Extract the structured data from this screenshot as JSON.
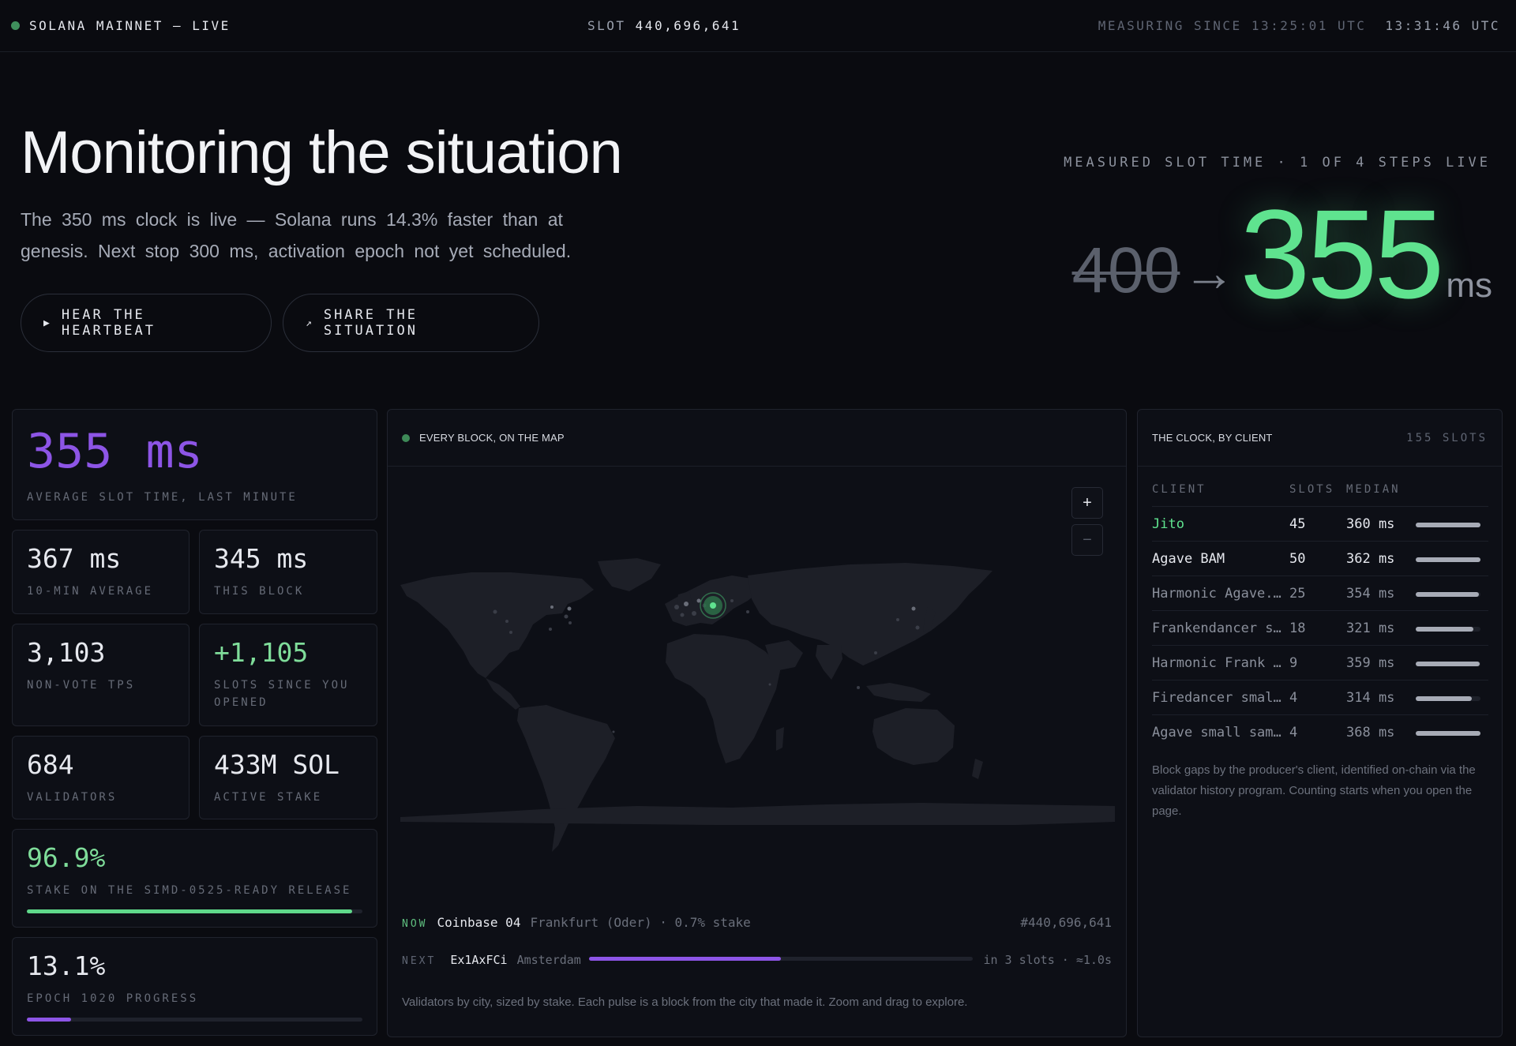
{
  "topbar": {
    "network": "SOLANA MAINNET — LIVE",
    "slot_label": "SLOT",
    "slot_value": "440,696,641",
    "measuring_since": "MEASURING SINCE 13:25:01 UTC",
    "clock": "13:31:46 UTC"
  },
  "hero": {
    "title": "Monitoring the situation",
    "subtitle": "The 350 ms clock is live — Solana runs 14.3% faster than at genesis. Next stop 300 ms, activation epoch not yet scheduled.",
    "btn_heartbeat": "HEAR THE HEARTBEAT",
    "btn_share": "SHARE THE SITUATION",
    "measured_label": "MEASURED SLOT TIME · 1 OF 4 STEPS LIVE",
    "old_value": "400",
    "arrow": "→",
    "new_value": "355",
    "unit": "ms"
  },
  "stats": {
    "avg_minute": {
      "value": "355 ms",
      "label": "AVERAGE SLOT TIME, LAST MINUTE"
    },
    "ten_min": {
      "value": "367 ms",
      "label": "10-MIN AVERAGE"
    },
    "this_block": {
      "value": "345 ms",
      "label": "THIS BLOCK"
    },
    "tps": {
      "value": "3,103",
      "label": "NON-VOTE TPS"
    },
    "slots_since": {
      "value": "+1,105",
      "label": "SLOTS SINCE YOU OPENED"
    },
    "validators": {
      "value": "684",
      "label": "VALIDATORS"
    },
    "stake": {
      "value": "433M SOL",
      "label": "ACTIVE STAKE"
    },
    "simd": {
      "value": "96.9%",
      "label": "STAKE ON THE SIMD-0525-READY RELEASE",
      "progress": 0.969
    },
    "epoch": {
      "value": "13.1%",
      "label": "EPOCH 1020 PROGRESS",
      "progress": 0.131
    }
  },
  "colors": {
    "green": "#5fe38f",
    "purple": "#8d55e6",
    "bg": "#0a0b10"
  },
  "map": {
    "title": "EVERY BLOCK, ON THE MAP",
    "zoom_in": "+",
    "zoom_out": "−",
    "now_tag": "NOW",
    "now_validator": "Coinbase 04",
    "now_location": "Frankfurt (Oder) · 0.7% stake",
    "now_slot": "#440,696,641",
    "next_tag": "NEXT",
    "next_validator": "Ex1AxFCi",
    "next_location": "Amsterdam",
    "next_progress": 0.5,
    "next_eta": "in 3 slots · ≈1.0s",
    "caption": "Validators by city, sized by stake. Each pulse is a block from the city that made it. Zoom and drag to explore."
  },
  "clients": {
    "title": "THE CLOCK, BY CLIENT",
    "slots_total": "155 SLOTS",
    "col_client": "CLIENT",
    "col_slots": "SLOTS",
    "col_median": "MEDIAN",
    "rows": [
      {
        "name": "Jito",
        "slots": "45",
        "median": "360 ms",
        "bar": 1.0,
        "color": "#5fe38f",
        "dim": false
      },
      {
        "name": "Agave BAM",
        "slots": "50",
        "median": "362 ms",
        "bar": 1.0,
        "color": "#e6e8ee",
        "dim": false
      },
      {
        "name": "Harmonic Agave...",
        "slots": "25",
        "median": "354 ms",
        "bar": 0.98,
        "color": "#8a8f9b",
        "dim": true
      },
      {
        "name": "Frankendancer s...",
        "slots": "18",
        "median": "321 ms",
        "bar": 0.89,
        "color": "#8a8f9b",
        "dim": true
      },
      {
        "name": "Harmonic Frank ...",
        "slots": "9",
        "median": "359 ms",
        "bar": 0.99,
        "color": "#8a8f9b",
        "dim": true
      },
      {
        "name": "Firedancer small ...",
        "slots": "4",
        "median": "314 ms",
        "bar": 0.87,
        "color": "#8a8f9b",
        "dim": true
      },
      {
        "name": "Agave small sample",
        "slots": "4",
        "median": "368 ms",
        "bar": 1.0,
        "color": "#8a8f9b",
        "dim": true
      }
    ],
    "note": "Block gaps by the producer's client, identified on-chain via the validator history program. Counting starts when you open the page."
  }
}
